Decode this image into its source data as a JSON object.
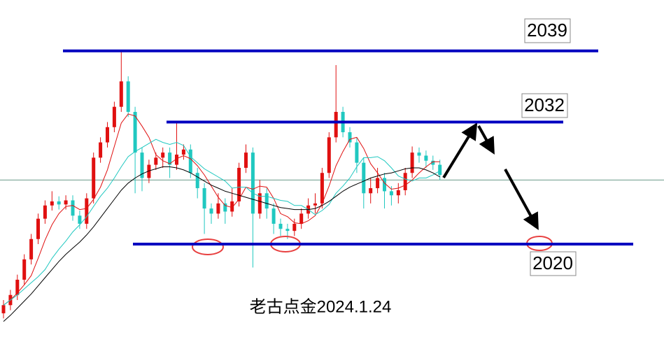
{
  "chart_data": {
    "type": "candlestick",
    "annotation": "老古点金2024.1.24",
    "ylim": [
      2009,
      2044
    ],
    "up_color": "#e01010",
    "down_color": "#20c8c0",
    "open": [
      2013.2,
      2014.0,
      2015.0,
      2016.5,
      2018.5,
      2020.5,
      2022.5,
      2023.8,
      2024.2,
      2023.9,
      2024.3,
      2022.8,
      2022.0,
      2024.5,
      2028.5,
      2030.0,
      2031.5,
      2033.5,
      2036.0,
      2033.0,
      2029.0,
      2026.5,
      2027.8,
      2028.5,
      2029.0,
      2027.8,
      2028.8,
      2029.3,
      2027.0,
      2025.5,
      2023.5,
      2023.0,
      2024.0,
      2023.2,
      2024.2,
      2027.5,
      2029.0,
      2023.0,
      2025.0,
      2023.5,
      2022.0,
      2021.5,
      2021.3,
      2022.0,
      2023.0,
      2023.8,
      2024.0,
      2027.0,
      2030.5,
      2033.0,
      2031.0,
      2030.0,
      2028.0,
      2025.0,
      2025.5,
      2026.5,
      2025.2,
      2024.8,
      2025.3,
      2027.0,
      2029.0,
      2028.7,
      2028.2,
      2027.8
    ],
    "high": [
      2014.5,
      2015.5,
      2017.0,
      2019.0,
      2021.0,
      2023.0,
      2024.3,
      2025.2,
      2024.7,
      2024.8,
      2024.8,
      2023.3,
      2025.0,
      2029.0,
      2030.5,
      2032.0,
      2034.0,
      2039.0,
      2036.5,
      2033.5,
      2029.5,
      2028.3,
      2029.0,
      2029.5,
      2029.5,
      2032.0,
      2029.8,
      2029.8,
      2027.5,
      2026.0,
      2024.0,
      2025.0,
      2024.5,
      2025.5,
      2028.0,
      2029.8,
      2029.5,
      2026.3,
      2025.5,
      2024.0,
      2022.5,
      2022.0,
      2022.5,
      2023.5,
      2024.5,
      2025.0,
      2027.5,
      2031.0,
      2037.6,
      2033.5,
      2031.5,
      2030.5,
      2028.5,
      2026.5,
      2027.5,
      2027.0,
      2025.7,
      2026.0,
      2027.5,
      2029.6,
      2029.5,
      2029.2,
      2028.7,
      2028.3
    ],
    "low": [
      2012.7,
      2013.5,
      2014.5,
      2016.0,
      2018.0,
      2020.0,
      2022.0,
      2023.3,
      2023.4,
      2023.4,
      2022.3,
      2021.5,
      2021.5,
      2024.0,
      2028.0,
      2029.5,
      2031.0,
      2033.0,
      2032.5,
      2025.0,
      2025.2,
      2026.0,
      2027.3,
      2027.5,
      2026.5,
      2027.3,
      2028.3,
      2026.5,
      2024.5,
      2021.0,
      2022.0,
      2022.5,
      2022.0,
      2022.7,
      2023.7,
      2027.0,
      2017.7,
      2022.5,
      2022.5,
      2021.0,
      2020.8,
      2020.5,
      2020.8,
      2021.5,
      2022.5,
      2023.0,
      2023.5,
      2026.5,
      2030.0,
      2030.5,
      2029.5,
      2027.0,
      2023.5,
      2024.0,
      2025.0,
      2023.5,
      2023.8,
      2024.0,
      2024.8,
      2026.5,
      2028.0,
      2027.5,
      2027.3,
      2026.3
    ],
    "close": [
      2014.0,
      2015.0,
      2016.5,
      2018.5,
      2020.5,
      2022.5,
      2023.8,
      2024.2,
      2023.9,
      2024.3,
      2022.8,
      2022.0,
      2024.5,
      2028.5,
      2030.0,
      2031.5,
      2033.5,
      2036.0,
      2033.0,
      2029.0,
      2026.5,
      2027.8,
      2028.5,
      2029.0,
      2027.8,
      2028.8,
      2029.3,
      2027.0,
      2025.5,
      2023.5,
      2023.0,
      2024.0,
      2023.2,
      2024.2,
      2027.5,
      2029.0,
      2023.0,
      2025.0,
      2023.5,
      2022.0,
      2021.5,
      2021.3,
      2022.0,
      2023.0,
      2023.8,
      2024.0,
      2027.0,
      2030.5,
      2033.0,
      2031.0,
      2030.0,
      2028.0,
      2025.0,
      2025.5,
      2026.5,
      2025.2,
      2024.8,
      2025.3,
      2027.0,
      2029.0,
      2028.7,
      2028.2,
      2027.8,
      2026.8
    ],
    "ma": [
      {
        "color": "#e01010",
        "values": [
          2014.0,
          2014.5,
          2015.2,
          2016.0,
          2016.9,
          2018.6,
          2020.4,
          2021.9,
          2023.0,
          2023.7,
          2023.8,
          2023.4,
          2023.5,
          2024.4,
          2025.6,
          2027.3,
          2029.6,
          2031.9,
          2032.8,
          2032.6,
          2031.6,
          2030.5,
          2028.8,
          2028.2,
          2027.9,
          2028.4,
          2028.7,
          2028.4,
          2027.7,
          2026.8,
          2025.7,
          2024.6,
          2023.8,
          2023.6,
          2024.4,
          2025.6,
          2025.4,
          2025.7,
          2025.6,
          2024.5,
          2023.0,
          2022.7,
          2022.1,
          2022.0,
          2022.3,
          2022.8,
          2024.0,
          2025.7,
          2027.7,
          2029.1,
          2030.3,
          2030.5,
          2029.4,
          2027.9,
          2027.0,
          2026.0,
          2025.4,
          2025.5,
          2025.8,
          2026.3,
          2027.0,
          2027.6,
          2028.1,
          2028.1
        ]
      },
      {
        "color": "#20c8c0",
        "values": [
          2014.0,
          2014.5,
          2015.0,
          2015.6,
          2016.2,
          2016.8,
          2017.5,
          2018.6,
          2019.5,
          2020.3,
          2021.2,
          2021.9,
          2022.7,
          2023.7,
          2024.7,
          2025.5,
          2026.5,
          2027.6,
          2028.6,
          2029.1,
          2029.5,
          2029.9,
          2030.3,
          2030.0,
          2029.8,
          2030.0,
          2029.7,
          2028.6,
          2028.0,
          2027.4,
          2027.0,
          2026.6,
          2026.2,
          2025.5,
          2025.6,
          2025.6,
          2025.0,
          2024.7,
          2024.7,
          2024.5,
          2024.3,
          2024.2,
          2023.8,
          2023.8,
          2023.4,
          2022.9,
          2023.3,
          2023.9,
          2025.0,
          2025.7,
          2026.5,
          2027.6,
          2028.5,
          2028.5,
          2028.6,
          2028.2,
          2027.5,
          2026.7,
          2026.4,
          2026.2,
          2026.5,
          2026.5,
          2026.8,
          2027.2
        ]
      },
      {
        "color": "#000000",
        "values": [
          2012.4,
          2013.0,
          2013.7,
          2014.4,
          2015.1,
          2015.9,
          2016.7,
          2017.5,
          2018.3,
          2019.0,
          2019.6,
          2020.2,
          2020.9,
          2021.7,
          2022.6,
          2023.5,
          2024.4,
          2025.3,
          2026.0,
          2026.5,
          2026.9,
          2027.2,
          2027.4,
          2027.6,
          2027.6,
          2027.5,
          2027.3,
          2027.0,
          2026.6,
          2026.2,
          2025.8,
          2025.5,
          2025.2,
          2025.0,
          2024.8,
          2024.6,
          2024.4,
          2024.2,
          2024.0,
          2023.8,
          2023.6,
          2023.5,
          2023.4,
          2023.4,
          2023.4,
          2023.5,
          2023.8,
          2024.2,
          2024.7,
          2025.2,
          2025.6,
          2025.9,
          2026.2,
          2026.5,
          2026.7,
          2026.9,
          2027.0,
          2027.2,
          2027.4,
          2027.5,
          2027.5,
          2027.3,
          2027.0,
          2026.6
        ]
      }
    ],
    "levels": [
      2039,
      2032,
      2020
    ],
    "level_color": "#0000c0",
    "price_line": 2026.3
  }
}
